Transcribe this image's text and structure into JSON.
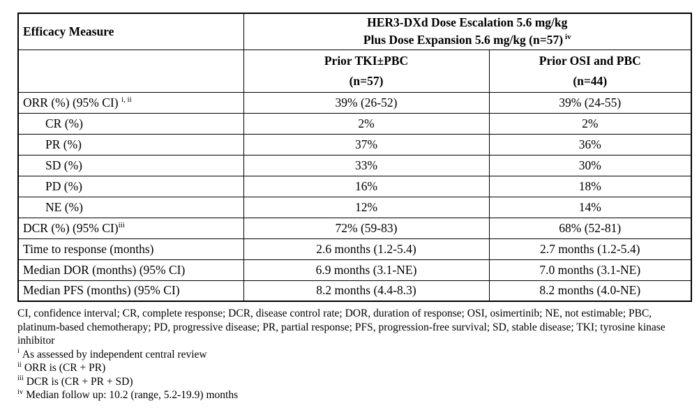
{
  "table": {
    "corner_label": "Efficacy Measure",
    "group_header": {
      "line1": "HER3-DXd Dose Escalation 5.6 mg/kg",
      "line2": "Plus Dose Expansion 5.6 mg/kg (n=57)",
      "line2_sup": "iv"
    },
    "columns": [
      {
        "label": "Prior TKI±PBC",
        "sub": "(n=57)"
      },
      {
        "label": "Prior OSI and PBC",
        "sub": "(n=44)"
      }
    ],
    "rows": [
      {
        "label": "ORR (%) (95% CI)",
        "sup": "i, ii",
        "values": [
          "39% (26-52)",
          "39% (24-55)"
        ]
      },
      {
        "label": "CR (%)",
        "sup": "",
        "values": [
          "2%",
          "2%"
        ]
      },
      {
        "label": "PR (%)",
        "sup": "",
        "values": [
          "37%",
          "36%"
        ]
      },
      {
        "label": "SD (%)",
        "sup": "",
        "values": [
          "33%",
          "30%"
        ]
      },
      {
        "label": "PD (%)",
        "sup": "",
        "values": [
          "16%",
          "18%"
        ]
      },
      {
        "label": "NE (%)",
        "sup": "",
        "values": [
          "12%",
          "14%"
        ]
      },
      {
        "label": "DCR (%) (95% CI)",
        "sup": "iii",
        "values": [
          "72% (59-83)",
          "68% (52-81)"
        ]
      },
      {
        "label": "Time to response (months)",
        "sup": "",
        "values": [
          "2.6 months (1.2-5.4)",
          "2.7 months (1.2-5.4)"
        ]
      },
      {
        "label": "Median DOR (months) (95% CI)",
        "sup": "",
        "values": [
          "6.9 months (3.1-NE)",
          "7.0 months (3.1-NE)"
        ]
      },
      {
        "label": "Median PFS (months) (95% CI)",
        "sup": "",
        "values": [
          "8.2 months (4.4-8.3)",
          "8.2 months (4.0-NE)"
        ]
      }
    ]
  },
  "footnotes": {
    "abbreviations": "CI, confidence interval; CR, complete response; DCR, disease control rate; DOR, duration of response; OSI, osimertinib; NE, not estimable; PBC, platinum-based chemotherapy; PD, progressive disease; PR, partial response; PFS, progression-free survival; SD, stable disease; TKI; tyrosine kinase inhibitor",
    "notes": [
      {
        "sup": "i",
        "text": "As assessed by independent central review"
      },
      {
        "sup": "ii",
        "text": "ORR is (CR + PR)"
      },
      {
        "sup": "iii",
        "text": "DCR is (CR + PR + SD)"
      },
      {
        "sup": "iv",
        "text": "Median follow up: 10.2 (range, 5.2-19.9) months"
      }
    ]
  }
}
